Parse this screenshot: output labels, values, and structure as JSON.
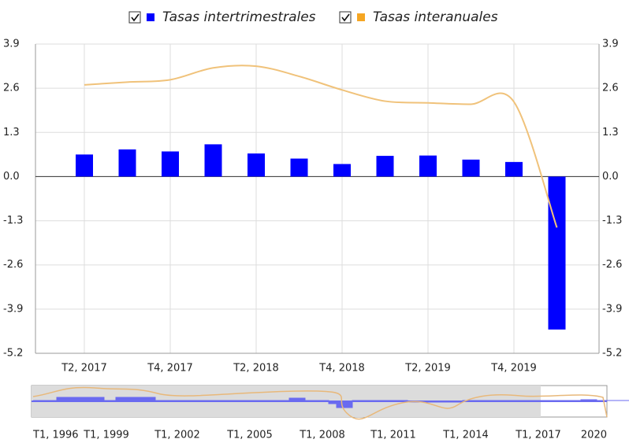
{
  "chart_data": {
    "type": "bar_line",
    "categories": [
      "T2, 2017",
      null,
      "T4, 2017",
      null,
      "T2, 2018",
      null,
      "T4, 2018",
      null,
      "T2, 2019",
      null,
      "T4, 2019",
      null
    ],
    "series": [
      {
        "name": "Tasas intertrimestrales",
        "type": "bar",
        "color": "#0000ff",
        "legend_color": "#0000ff",
        "values": [
          0.65,
          0.8,
          0.74,
          0.95,
          0.68,
          0.53,
          0.37,
          0.61,
          0.62,
          0.5,
          0.43,
          -4.5
        ]
      },
      {
        "name": "Tasas interanuales",
        "type": "line",
        "axis": "y2",
        "color": "#f0c27a",
        "legend_color": "#f5a623",
        "values": [
          2.7,
          2.78,
          2.85,
          3.2,
          3.25,
          2.95,
          2.55,
          2.22,
          2.17,
          2.13,
          2.2,
          -1.5
        ]
      }
    ],
    "ylim": [
      -5.2,
      3.9
    ],
    "yticks": [
      3.9,
      2.6,
      1.3,
      {
        "value": 0,
        "label": "0.0"
      },
      -1.3,
      -2.6,
      -3.9,
      -5.2
    ],
    "y2lim": [
      -5.2,
      3.9
    ],
    "y2ticks": [
      3.9,
      2.6,
      1.3,
      {
        "value": 0,
        "label": "0.0"
      },
      -1.3,
      -2.6,
      -3.9,
      -5.2
    ],
    "grid": true,
    "legend": "top",
    "navigator": {
      "labels": [
        "T1, 1996",
        "T1, 1999",
        "T1, 2002",
        "T1, 2005",
        "T1, 2008",
        "T1, 2011",
        "T1, 2014",
        "T1, 2017",
        "2020"
      ]
    }
  }
}
